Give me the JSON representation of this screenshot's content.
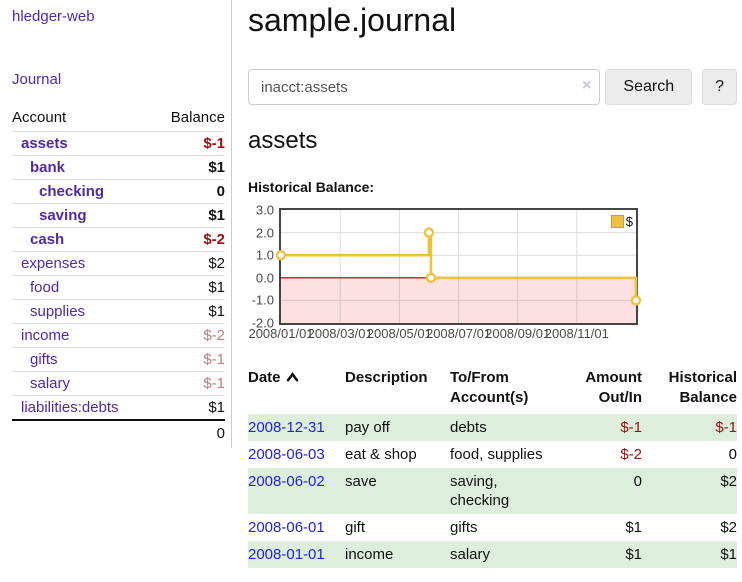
{
  "sidebar": {
    "app_title": "hledger-web",
    "journal_link": "Journal",
    "table": {
      "account_header": "Account",
      "balance_header": "Balance",
      "accounts": [
        {
          "name": "assets",
          "balance": "$-1",
          "name_flags": "l1 bold",
          "bal_flags": "bold neg"
        },
        {
          "name": "bank",
          "balance": "$1",
          "name_flags": "l2 bold",
          "bal_flags": "bold"
        },
        {
          "name": "checking",
          "balance": "0",
          "name_flags": "l3 bold",
          "bal_flags": "bold"
        },
        {
          "name": "saving",
          "balance": "$1",
          "name_flags": "l3 bold",
          "bal_flags": "bold"
        },
        {
          "name": "cash",
          "balance": "$-2",
          "name_flags": "l2 bold",
          "bal_flags": "bold neg"
        },
        {
          "name": "expenses",
          "balance": "$2",
          "name_flags": "l1",
          "bal_flags": ""
        },
        {
          "name": "food",
          "balance": "$1",
          "name_flags": "l2",
          "bal_flags": ""
        },
        {
          "name": "supplies",
          "balance": "$1",
          "name_flags": "l2",
          "bal_flags": ""
        },
        {
          "name": "income",
          "balance": "$-2",
          "name_flags": "l1",
          "bal_flags": "negsoft"
        },
        {
          "name": "gifts",
          "balance": "$-1",
          "name_flags": "l2",
          "bal_flags": "negsoft"
        },
        {
          "name": "salary",
          "balance": "$-1",
          "name_flags": "l2 blue",
          "bal_flags": "negsoft"
        },
        {
          "name": "liabilities:debts",
          "balance": "$1",
          "name_flags": "l1",
          "bal_flags": ""
        }
      ],
      "total": "0"
    }
  },
  "header": {
    "title": "sample.journal"
  },
  "search": {
    "value": "inacct:assets",
    "clear_icon": "×",
    "button_label": "Search",
    "help_label": "?"
  },
  "account_page": {
    "title": "assets",
    "chart_label": "Historical Balance:"
  },
  "chart_data": {
    "type": "line",
    "title": "Historical Balance",
    "x_unit": "months since 2008-01-01",
    "xlim": [
      0,
      12
    ],
    "ylim": [
      -2,
      3
    ],
    "x_tick_positions": [
      0,
      2,
      4,
      6,
      8,
      10
    ],
    "x_tick_labels": [
      "2008/01/01",
      "2008/03/01",
      "2008/05/01",
      "2008/07/01",
      "2008/09/01",
      "2008/11/01"
    ],
    "y_tick_labels": [
      "3.0",
      "2.0",
      "1.0",
      "0.0",
      "-1.0",
      "-2.0"
    ],
    "grid": true,
    "series": [
      {
        "name": "$",
        "color": "#EDC240",
        "step": true,
        "points_dates": [
          "2008-01-01",
          "2008-06-01",
          "2008-06-03",
          "2008-12-31"
        ],
        "points": [
          [
            0,
            1
          ],
          [
            5,
            2
          ],
          [
            5.07,
            0
          ],
          [
            12,
            -1
          ]
        ]
      }
    ],
    "zero_line_color": "#aa2222",
    "negative_region_color": "rgba(244,70,70,0.16)",
    "legend": {
      "label": "$",
      "position": "top-right"
    }
  },
  "register": {
    "columns": [
      "Date",
      "Description",
      "To/From Account(s)",
      "Amount Out/In",
      "Historical Balance"
    ],
    "sort_column": "Date",
    "sort_direction": "ascending",
    "rows": [
      {
        "date": "2008-12-31",
        "description": "pay off",
        "accounts": "debts",
        "amount": "$-1",
        "balance": "$-1",
        "amount_flags": "neg",
        "balance_flags": "neg"
      },
      {
        "date": "2008-06-03",
        "description": "eat & shop",
        "accounts": "food, supplies",
        "amount": "$-2",
        "balance": "0",
        "amount_flags": "neg",
        "balance_flags": ""
      },
      {
        "date": "2008-06-02",
        "description": "save",
        "accounts": "saving,\nchecking",
        "amount": "0",
        "balance": "$2",
        "amount_flags": "",
        "balance_flags": ""
      },
      {
        "date": "2008-06-01",
        "description": "gift",
        "accounts": "gifts",
        "amount": "$1",
        "balance": "$2",
        "amount_flags": "",
        "balance_flags": ""
      },
      {
        "date": "2008-01-01",
        "description": "income",
        "accounts": "salary",
        "amount": "$1",
        "balance": "$1",
        "amount_flags": "",
        "balance_flags": ""
      }
    ]
  }
}
